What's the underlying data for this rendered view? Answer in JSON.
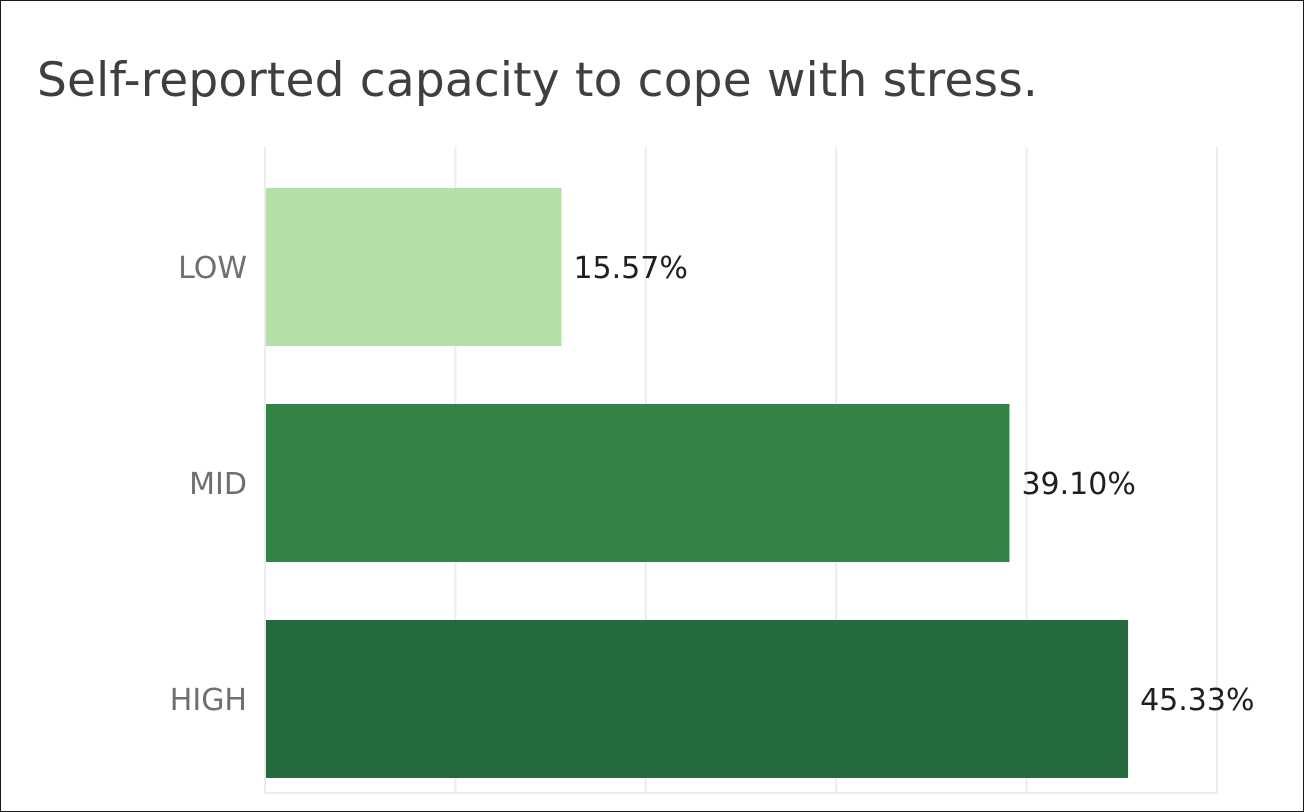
{
  "chart_data": {
    "type": "bar",
    "orientation": "horizontal",
    "title": "Self-reported capacity to cope with stress.",
    "categories": [
      "LOW",
      "MID",
      "HIGH"
    ],
    "values": [
      15.57,
      39.1,
      45.33
    ],
    "value_labels": [
      "15.57%",
      "39.10%",
      "45.33%"
    ],
    "colors": [
      "#b3e0a6",
      "#338444",
      "#256a3e"
    ],
    "xlim": [
      0,
      50
    ],
    "grid": true,
    "legend": "none"
  }
}
